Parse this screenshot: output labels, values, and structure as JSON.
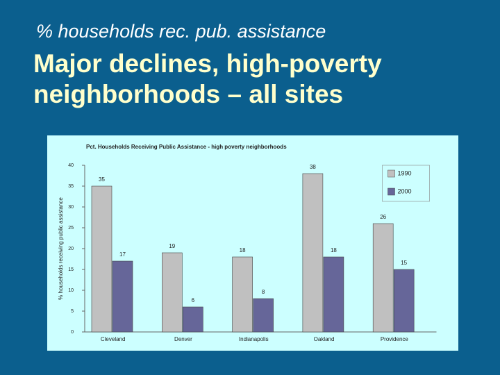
{
  "header": {
    "subtitle": "% households rec. pub. assistance",
    "title": "Major declines, high-poverty neighborhoods – all sites"
  },
  "chart_data": {
    "type": "bar",
    "title": "Pct. Households Receiving Public Assistance - high poverty neighborhoods",
    "y_label": "% households receiving public assistance",
    "categories": [
      "Cleveland",
      "Denver",
      "Indianapolis",
      "Oakland",
      "Providence"
    ],
    "series": [
      {
        "name": "1990",
        "color": "#c0c0c0",
        "values": [
          35,
          19,
          18,
          38,
          26
        ]
      },
      {
        "name": "2000",
        "color": "#666699",
        "values": [
          17,
          6,
          8,
          18,
          15
        ]
      }
    ],
    "ylim": [
      0,
      40
    ],
    "yticks": [
      0,
      5,
      10,
      15,
      20,
      25,
      30,
      35,
      40
    ],
    "grid": false,
    "legend": "top-right"
  }
}
